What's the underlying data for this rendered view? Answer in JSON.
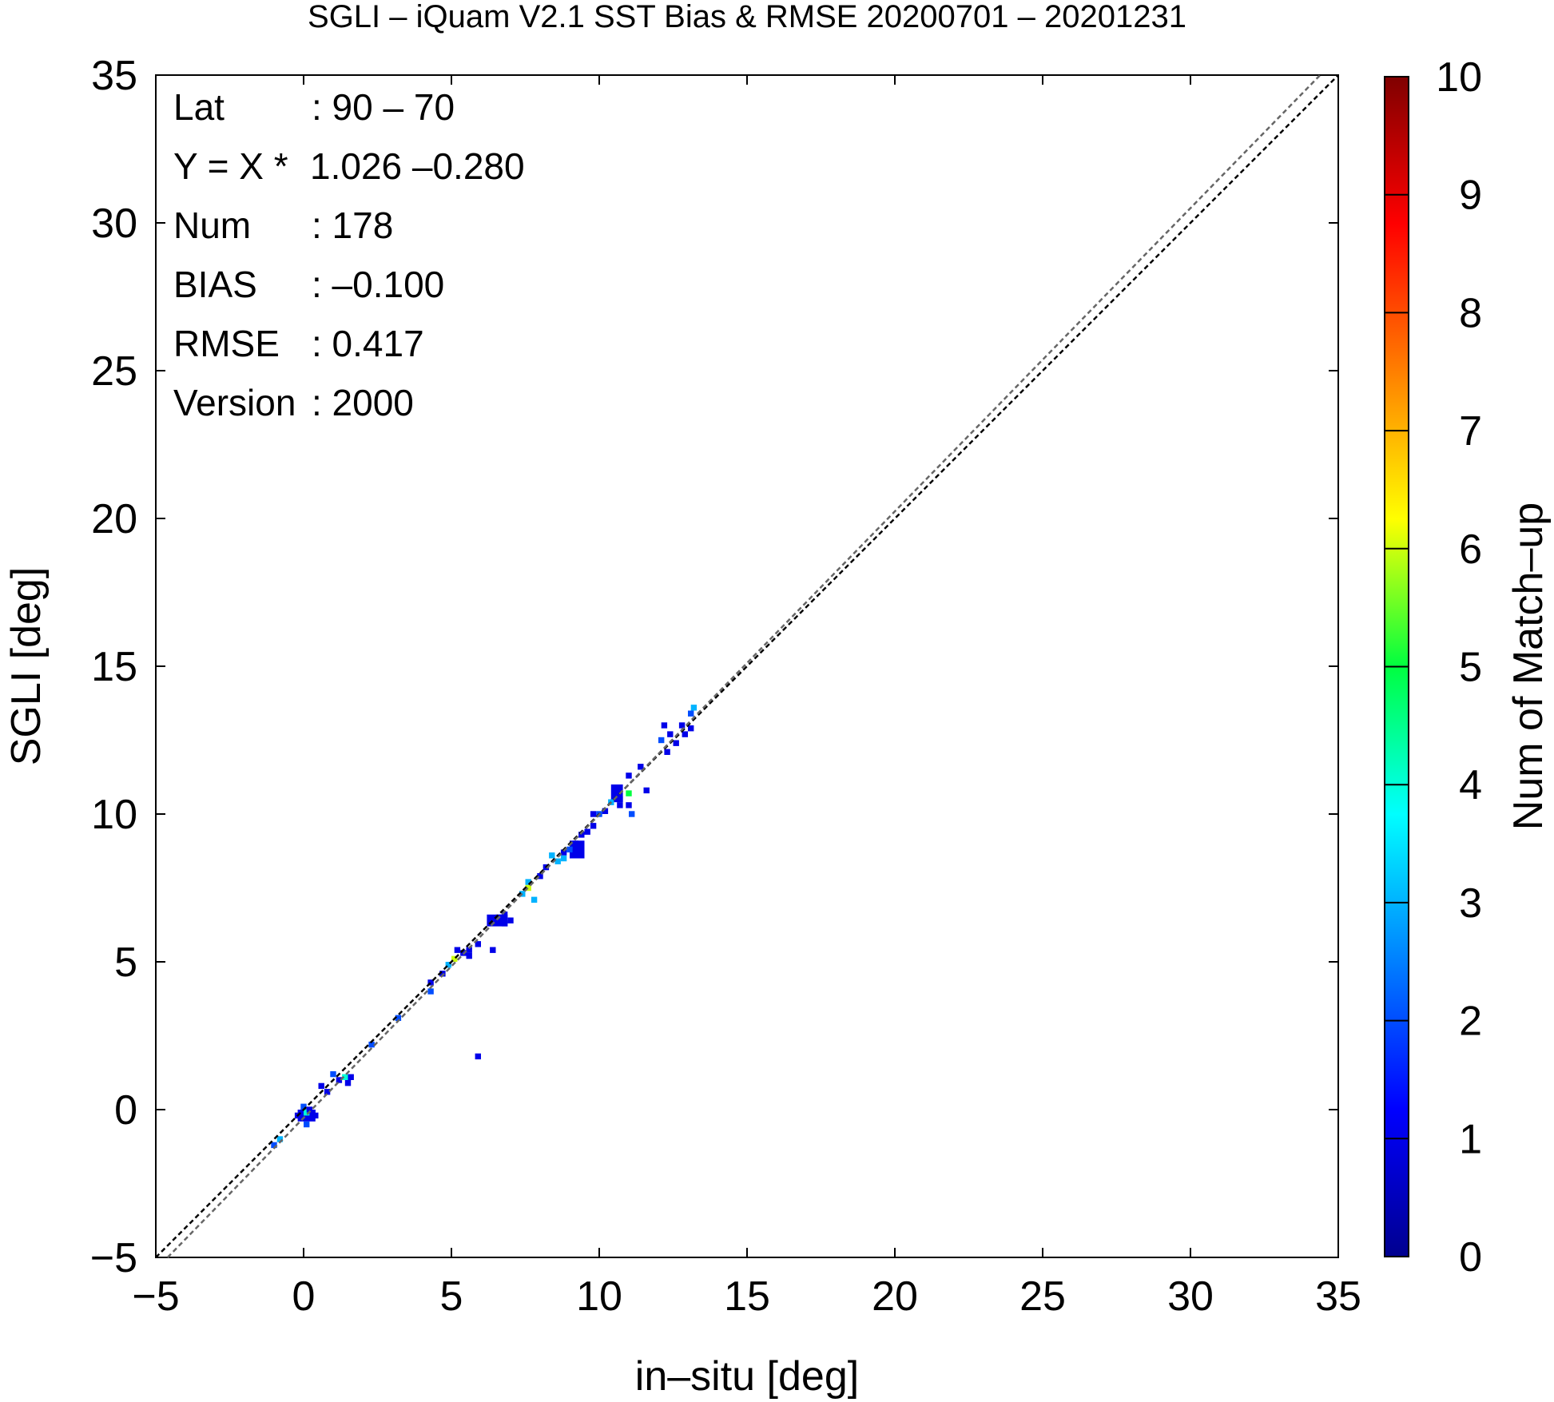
{
  "chart_data": {
    "type": "heatmap",
    "title": "SGLI – iQuam V2.1 SST Bias & RMSE 20200701 – 20201231",
    "xlabel": "in–situ [deg]",
    "ylabel": "SGLI [deg]",
    "xlim": [
      -5,
      35
    ],
    "ylim": [
      -5,
      35
    ],
    "x_ticks": [
      -5,
      0,
      5,
      10,
      15,
      20,
      25,
      30,
      35
    ],
    "y_ticks": [
      -5,
      0,
      5,
      10,
      15,
      20,
      25,
      30,
      35
    ],
    "x_tick_labels": [
      "−5",
      "0",
      "5",
      "10",
      "15",
      "20",
      "25",
      "30",
      "35"
    ],
    "y_tick_labels": [
      "−5",
      "0",
      "5",
      "10",
      "15",
      "20",
      "25",
      "30",
      "35"
    ],
    "grid": false,
    "colorbar": {
      "label": "Num of Match–up",
      "min": 0,
      "max": 10,
      "ticks": [
        0,
        1,
        2,
        3,
        4,
        5,
        6,
        7,
        8,
        9,
        10
      ],
      "tick_labels": [
        "0",
        "1",
        "2",
        "3",
        "4",
        "5",
        "6",
        "7",
        "8",
        "9",
        "10"
      ],
      "colormap": "jet"
    },
    "reference_lines": [
      {
        "kind": "one-to-one",
        "slope": 1,
        "intercept": 0,
        "color": "#000000",
        "dash": true
      },
      {
        "kind": "regression",
        "slope": 1.026,
        "intercept": -0.28,
        "color": "#666666",
        "dash": true
      }
    ],
    "stats": [
      {
        "label": "Lat",
        "value": ": 90 – 70"
      },
      {
        "label": "Y = X *",
        "value": "1.026 –0.280"
      },
      {
        "label": "Num",
        "value": ": 178"
      },
      {
        "label": "BIAS",
        "value": ": –0.100"
      },
      {
        "label": "RMSE",
        "value": ": 0.417"
      },
      {
        "label": "Version",
        "value": ": 2000"
      }
    ],
    "bin_size": 0.2,
    "cells": [
      [
        -1.1,
        -1.3,
        2
      ],
      [
        -0.9,
        -1.1,
        3
      ],
      [
        -0.3,
        -0.3,
        1
      ],
      [
        -0.1,
        0.0,
        2
      ],
      [
        0.0,
        -0.2,
        4
      ],
      [
        0.1,
        -0.1,
        1
      ],
      [
        0.2,
        -0.2,
        1
      ],
      [
        0.3,
        -0.3,
        1
      ],
      [
        0.0,
        -0.6,
        2
      ],
      [
        0.5,
        0.7,
        1
      ],
      [
        0.7,
        0.5,
        1
      ],
      [
        0.9,
        1.1,
        2
      ],
      [
        1.1,
        0.9,
        1
      ],
      [
        1.3,
        1.0,
        4
      ],
      [
        1.4,
        0.8,
        1
      ],
      [
        1.5,
        1.0,
        1
      ],
      [
        2.2,
        2.1,
        2
      ],
      [
        3.1,
        3.0,
        2
      ],
      [
        4.2,
        4.2,
        1
      ],
      [
        4.2,
        3.9,
        2
      ],
      [
        4.6,
        4.5,
        1
      ],
      [
        4.8,
        4.8,
        3
      ],
      [
        5.0,
        5.0,
        6
      ],
      [
        5.1,
        5.3,
        1
      ],
      [
        5.3,
        5.2,
        1
      ],
      [
        5.5,
        5.3,
        1
      ],
      [
        5.5,
        5.1,
        1
      ],
      [
        5.8,
        5.5,
        1
      ],
      [
        5.8,
        1.7,
        1
      ],
      [
        6.3,
        5.3,
        1
      ],
      [
        6.5,
        6.4,
        1
      ],
      [
        6.7,
        6.5,
        1
      ],
      [
        6.9,
        6.3,
        1
      ],
      [
        6.7,
        6.2,
        1
      ],
      [
        7.3,
        7.2,
        3
      ],
      [
        7.5,
        7.6,
        3
      ],
      [
        7.5,
        7.4,
        6
      ],
      [
        7.7,
        7.0,
        3
      ],
      [
        7.9,
        7.8,
        1
      ],
      [
        8.1,
        8.1,
        1
      ],
      [
        8.3,
        8.5,
        3
      ],
      [
        8.5,
        8.3,
        3
      ],
      [
        8.7,
        8.6,
        1
      ],
      [
        8.7,
        8.4,
        3
      ],
      [
        8.9,
        8.7,
        2
      ],
      [
        9.1,
        8.9,
        1
      ],
      [
        9.1,
        8.6,
        1
      ],
      [
        9.3,
        9.2,
        1
      ],
      [
        9.5,
        9.3,
        1
      ],
      [
        9.7,
        9.5,
        1
      ],
      [
        9.7,
        9.9,
        1
      ],
      [
        9.9,
        9.9,
        2
      ],
      [
        10.1,
        10.0,
        1
      ],
      [
        10.3,
        10.3,
        3
      ],
      [
        10.5,
        10.5,
        1
      ],
      [
        10.5,
        10.7,
        1
      ],
      [
        10.6,
        10.4,
        1
      ],
      [
        10.6,
        10.2,
        1
      ],
      [
        10.9,
        10.6,
        5
      ],
      [
        10.9,
        10.2,
        1
      ],
      [
        11.0,
        9.9,
        2
      ],
      [
        10.9,
        11.2,
        1
      ],
      [
        11.3,
        11.5,
        1
      ],
      [
        11.5,
        10.7,
        1
      ],
      [
        12.0,
        12.4,
        2
      ],
      [
        12.2,
        12.0,
        1
      ],
      [
        12.1,
        12.9,
        1
      ],
      [
        12.3,
        12.6,
        1
      ],
      [
        12.5,
        12.3,
        1
      ],
      [
        12.7,
        12.9,
        1
      ],
      [
        12.8,
        12.6,
        1
      ],
      [
        13.0,
        12.8,
        1
      ],
      [
        13.0,
        13.3,
        2
      ],
      [
        13.1,
        13.5,
        3
      ]
    ],
    "blocks": [
      [
        10.4,
        10.4,
        10.8,
        11.0,
        1
      ],
      [
        9.0,
        8.5,
        9.5,
        9.1,
        1
      ],
      [
        6.2,
        6.2,
        6.9,
        6.6,
        1
      ],
      [
        -0.2,
        -0.4,
        0.4,
        0.0,
        1
      ]
    ]
  }
}
